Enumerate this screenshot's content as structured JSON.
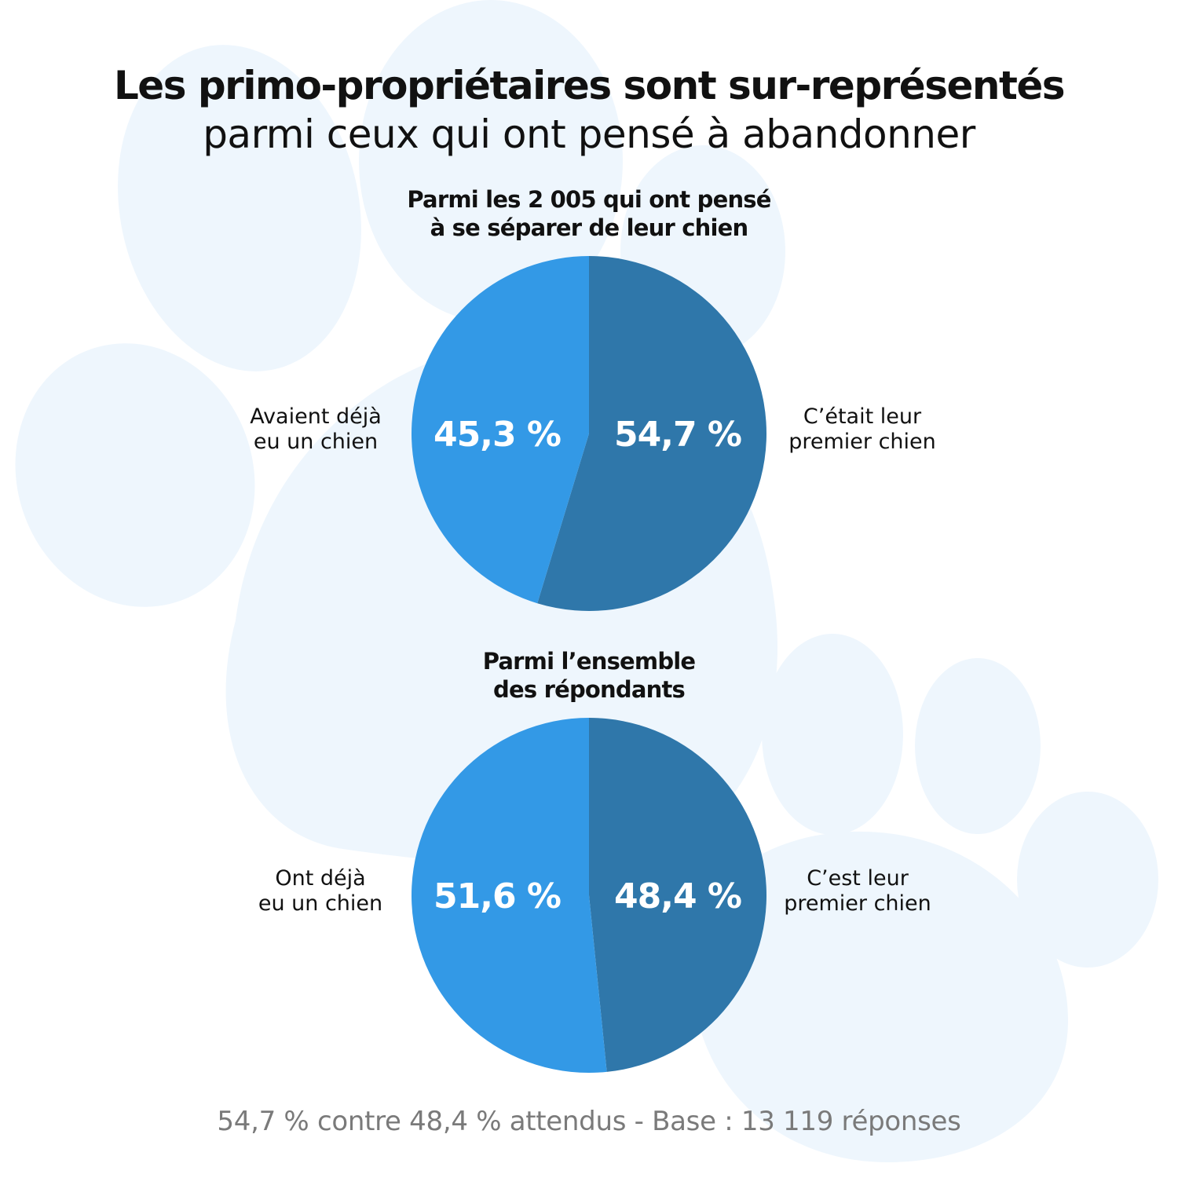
{
  "header": {
    "title": "Les primo-propriétaires sont sur-représentés",
    "subtitle": "parmi ceux qui ont pensé à abandonner"
  },
  "colors": {
    "slice_light": "#3399e6",
    "slice_dark": "#2f77aa",
    "background_paw": "#eef6fd",
    "footer_text": "#7a7a7a"
  },
  "chart_data": [
    {
      "type": "pie",
      "title_lines": [
        "Parmi les 2 005 qui ont pensé",
        "à se séparer de leur chien"
      ],
      "slices": [
        {
          "label_lines": [
            "C’était leur",
            "premier chien"
          ],
          "value": 54.7,
          "value_label": "54,7 %",
          "color": "#2f77aa"
        },
        {
          "label_lines": [
            "Avaient déjà",
            "eu un chien"
          ],
          "value": 45.3,
          "value_label": "45,3 %",
          "color": "#3399e6"
        }
      ]
    },
    {
      "type": "pie",
      "title_lines": [
        "Parmi l’ensemble",
        "des répondants"
      ],
      "slices": [
        {
          "label_lines": [
            "C’est leur",
            "premier chien"
          ],
          "value": 48.4,
          "value_label": "48,4 %",
          "color": "#2f77aa"
        },
        {
          "label_lines": [
            "Ont déjà",
            "eu un chien"
          ],
          "value": 51.6,
          "value_label": "51,6 %",
          "color": "#3399e6"
        }
      ]
    }
  ],
  "footer": {
    "note": "54,7 % contre 48,4 % attendus - Base : 13 119 réponses"
  }
}
